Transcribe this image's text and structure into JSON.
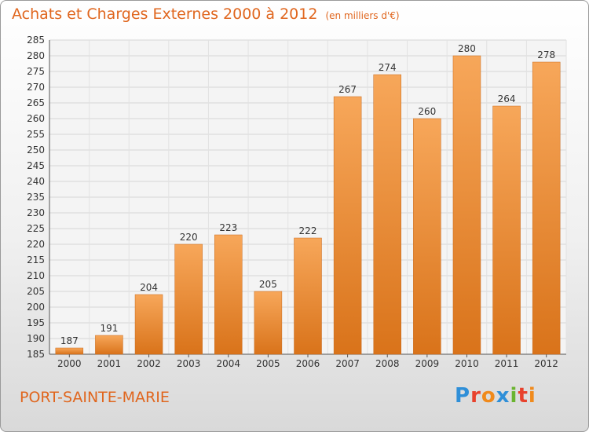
{
  "header": {
    "title": "Achats et Charges Externes 2000 à 2012",
    "unit_note": "(en milliers d'€)"
  },
  "footer": {
    "place": "PORT-SAINTE-MARIE",
    "brand": "Proxiti"
  },
  "colors": {
    "accent": "#e0661e",
    "bar_top": "#f7a75a",
    "bar_bottom": "#d9731a",
    "logo": [
      "#2f8fd8",
      "#e8412c",
      "#f08a1c",
      "#2f8fd8",
      "#6ab42f",
      "#e8412c",
      "#f08a1c"
    ]
  },
  "chart_data": {
    "type": "bar",
    "title": "Achats et Charges Externes 2000 à 2012",
    "subtitle": "(en milliers d'€)",
    "categories": [
      "2000",
      "2001",
      "2002",
      "2003",
      "2004",
      "2005",
      "2006",
      "2007",
      "2008",
      "2009",
      "2010",
      "2011",
      "2012"
    ],
    "values": [
      187,
      191,
      204,
      220,
      223,
      205,
      222,
      267,
      274,
      260,
      280,
      264,
      278
    ],
    "ylim": [
      185,
      285
    ],
    "yticks": [
      185,
      190,
      195,
      200,
      205,
      210,
      215,
      220,
      225,
      230,
      235,
      240,
      245,
      250,
      255,
      260,
      265,
      270,
      275,
      280,
      285
    ],
    "grid": true,
    "legend": "none"
  }
}
